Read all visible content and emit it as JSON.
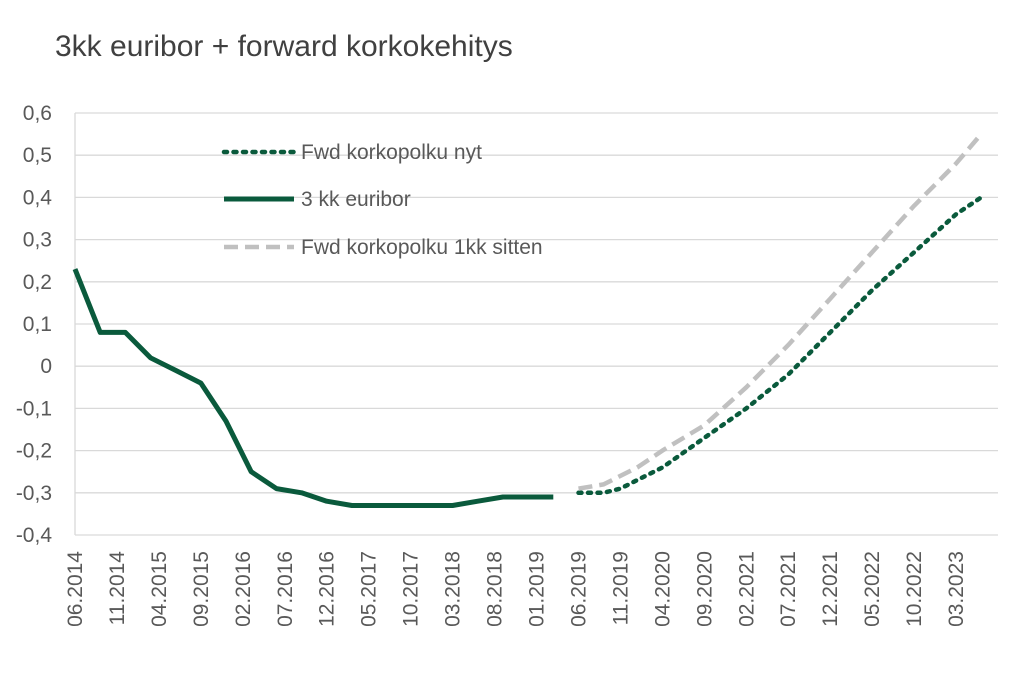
{
  "chart_data": {
    "type": "line",
    "title": "3kk euribor + forward korkokehitys",
    "xlabel": "",
    "ylabel": "",
    "ylim": [
      -0.4,
      0.6
    ],
    "y_ticks": [
      "0,6",
      "0,5",
      "0,4",
      "0,3",
      "0,2",
      "0,1",
      "0",
      "-0,1",
      "-0,2",
      "-0,3",
      "-0,4"
    ],
    "x_tick_labels": [
      "06.2014",
      "11.2014",
      "04.2015",
      "09.2015",
      "02.2016",
      "07.2016",
      "12.2016",
      "05.2017",
      "10.2017",
      "03.2018",
      "08.2018",
      "01.2019",
      "06.2019",
      "11.2019",
      "04.2020",
      "09.2020",
      "02.2021",
      "07.2021",
      "12.2021",
      "05.2022",
      "10.2022",
      "03.2023"
    ],
    "grid": true,
    "legend_position": "top-center",
    "series": [
      {
        "name": "Fwd korkopolku nyt",
        "color": "#0a5a3c",
        "style": "dotted",
        "x": [
          "06.2019",
          "09.2019",
          "11.2019",
          "01.2020",
          "04.2020",
          "09.2020",
          "02.2021",
          "07.2021",
          "12.2021",
          "05.2022",
          "10.2022",
          "03.2023",
          "06.2023"
        ],
        "values": [
          -0.3,
          -0.3,
          -0.29,
          -0.27,
          -0.24,
          -0.17,
          -0.1,
          -0.02,
          0.08,
          0.18,
          0.27,
          0.36,
          0.4
        ]
      },
      {
        "name": "3 kk euribor",
        "color": "#0a5a3c",
        "style": "solid",
        "x": [
          "06.2014",
          "09.2014",
          "12.2014",
          "03.2015",
          "06.2015",
          "09.2015",
          "12.2015",
          "03.2016",
          "06.2016",
          "09.2016",
          "12.2016",
          "03.2017",
          "06.2017",
          "09.2017",
          "12.2017",
          "03.2018",
          "06.2018",
          "09.2018",
          "12.2018",
          "03.2019"
        ],
        "values": [
          0.23,
          0.08,
          0.08,
          0.02,
          -0.01,
          -0.04,
          -0.13,
          -0.25,
          -0.29,
          -0.3,
          -0.32,
          -0.33,
          -0.33,
          -0.33,
          -0.33,
          -0.33,
          -0.32,
          -0.31,
          -0.31,
          -0.31
        ]
      },
      {
        "name": "Fwd korkopolku 1kk sitten",
        "color": "#c0c0c0",
        "style": "dashed",
        "x": [
          "06.2019",
          "09.2019",
          "11.2019",
          "01.2020",
          "04.2020",
          "09.2020",
          "02.2021",
          "07.2021",
          "12.2021",
          "05.2022",
          "10.2022",
          "03.2023",
          "06.2023"
        ],
        "values": [
          -0.29,
          -0.28,
          -0.26,
          -0.24,
          -0.2,
          -0.14,
          -0.05,
          0.05,
          0.16,
          0.27,
          0.38,
          0.48,
          0.55
        ]
      }
    ]
  }
}
